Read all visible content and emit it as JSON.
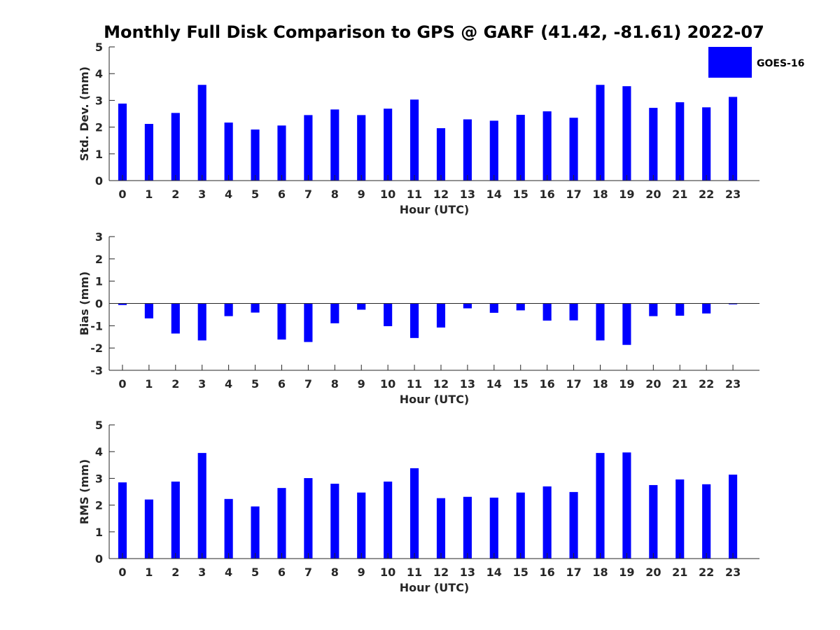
{
  "title": "Monthly Full Disk Comparison to GPS @ GARF (41.42, -81.61) 2022-07",
  "legend": {
    "label": "GOES-16",
    "color": "#0000ff",
    "placement": "top-right"
  },
  "chart_data": [
    {
      "type": "bar",
      "categories": [
        "0",
        "1",
        "2",
        "3",
        "4",
        "5",
        "6",
        "7",
        "8",
        "9",
        "10",
        "11",
        "12",
        "13",
        "14",
        "15",
        "16",
        "17",
        "18",
        "19",
        "20",
        "21",
        "22",
        "23"
      ],
      "series": [
        {
          "name": "GOES-16",
          "values": [
            2.88,
            2.12,
            2.53,
            3.58,
            2.17,
            1.91,
            2.06,
            2.45,
            2.66,
            2.45,
            2.69,
            3.03,
            1.96,
            2.29,
            2.24,
            2.46,
            2.59,
            2.35,
            3.58,
            3.53,
            2.72,
            2.93,
            2.74,
            3.13
          ]
        }
      ],
      "xlabel": "Hour (UTC)",
      "ylabel": "Std. Dev. (mm)",
      "ylim": [
        0,
        5
      ],
      "yticks": [
        "0",
        "1",
        "2",
        "3",
        "4",
        "5"
      ],
      "grid": false
    },
    {
      "type": "bar",
      "categories": [
        "0",
        "1",
        "2",
        "3",
        "4",
        "5",
        "6",
        "7",
        "8",
        "9",
        "10",
        "11",
        "12",
        "13",
        "14",
        "15",
        "16",
        "17",
        "18",
        "19",
        "20",
        "21",
        "22",
        "23"
      ],
      "series": [
        {
          "name": "GOES-16",
          "values": [
            -0.07,
            -0.67,
            -1.35,
            -1.66,
            -0.57,
            -0.41,
            -1.62,
            -1.73,
            -0.89,
            -0.28,
            -1.02,
            -1.55,
            -1.08,
            -0.22,
            -0.42,
            -0.31,
            -0.77,
            -0.76,
            -1.66,
            -1.86,
            -0.57,
            -0.55,
            -0.45,
            -0.04
          ]
        }
      ],
      "xlabel": "Hour (UTC)",
      "ylabel": "Bias (mm)",
      "ylim": [
        -3,
        3
      ],
      "yticks": [
        "-3",
        "-2",
        "-1",
        "0",
        "1",
        "2",
        "3"
      ],
      "grid": false
    },
    {
      "type": "bar",
      "categories": [
        "0",
        "1",
        "2",
        "3",
        "4",
        "5",
        "6",
        "7",
        "8",
        "9",
        "10",
        "11",
        "12",
        "13",
        "14",
        "15",
        "16",
        "17",
        "18",
        "19",
        "20",
        "21",
        "22",
        "23"
      ],
      "series": [
        {
          "name": "GOES-16",
          "values": [
            2.85,
            2.21,
            2.88,
            3.95,
            2.23,
            1.95,
            2.64,
            3.01,
            2.8,
            2.47,
            2.88,
            3.38,
            2.26,
            2.31,
            2.28,
            2.47,
            2.7,
            2.49,
            3.95,
            3.97,
            2.75,
            2.96,
            2.78,
            3.14
          ]
        }
      ],
      "xlabel": "Hour (UTC)",
      "ylabel": "RMS (mm)",
      "ylim": [
        0,
        5
      ],
      "yticks": [
        "0",
        "1",
        "2",
        "3",
        "4",
        "5"
      ],
      "grid": false
    }
  ]
}
